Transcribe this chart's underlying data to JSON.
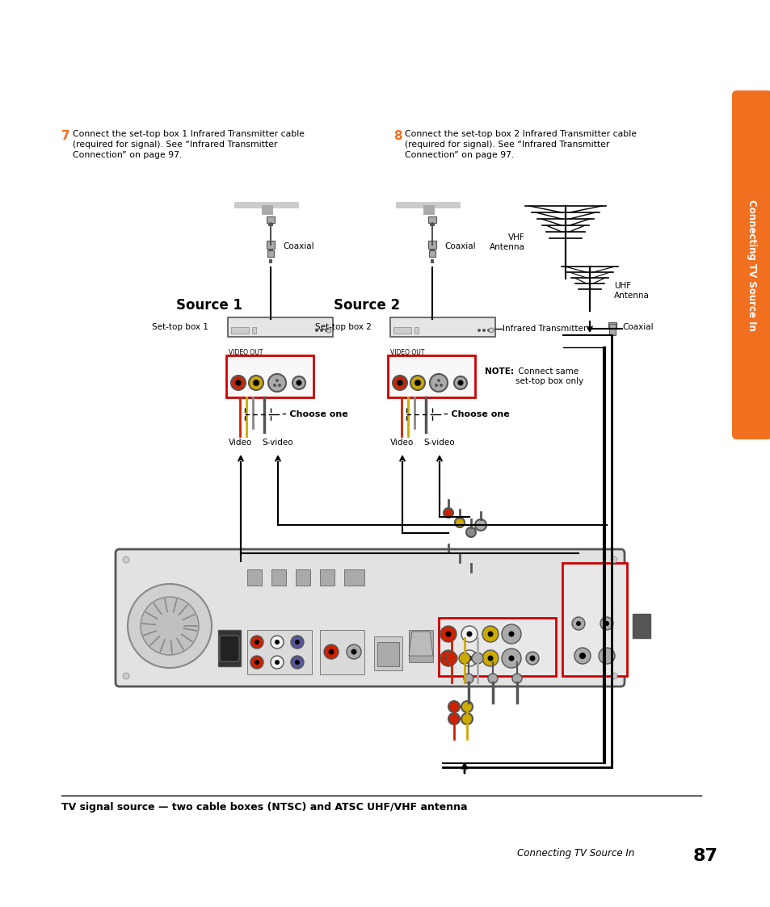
{
  "bg_color": "#ffffff",
  "orange_color": "#f07020",
  "page_width": 9.54,
  "page_height": 11.23,
  "sidebar_text": "Connecting TV Source In",
  "step7_num": "7",
  "step7_text": "Connect the set-top box 1 Infrared Transmitter cable\n(required for signal). See “Infrared Transmitter\nConnection” on page 97.",
  "step8_num": "8",
  "step8_text": "Connect the set-top box 2 Infrared Transmitter cable\n(required for signal). See “Infrared Transmitter\nConnection” on page 97.",
  "source1_label": "Source 1",
  "source2_label": "Source 2",
  "settop1_label": "Set-top box 1",
  "settop2_label": "Set-top box 2",
  "video_label1": "Video",
  "svideo_label1": "S-video",
  "video_label2": "Video",
  "svideo_label2": "S-video",
  "choose_one": "– Choose one",
  "coaxial_label1": "Coaxial",
  "coaxial_label2": "Coaxial",
  "coaxial_label3": "Coaxial",
  "vhf_label": "VHF\nAntenna",
  "uhf_label": "UHF\nAntenna",
  "ir_label": "Infrared Transmitter",
  "note_bold": "NOTE:",
  "note_rest": " Connect same\nset-top box only",
  "bottom_caption": "TV signal source — two cable boxes (NTSC) and ATSC UHF/VHF antenna",
  "page_label": "Connecting TV Source In",
  "page_num": "87",
  "video_out_label": "VIDEO OUT",
  "red_box_color": "#cc0000",
  "black": "#000000",
  "gray1": "#888888",
  "gray2": "#aaaaaa",
  "gray3": "#cccccc",
  "gray4": "#555555",
  "gray5": "#d8d8d8",
  "gray6": "#444444",
  "red_rca": "#cc2200",
  "yellow_rca": "#ccaa00",
  "white_rca": "#f0f0f0"
}
